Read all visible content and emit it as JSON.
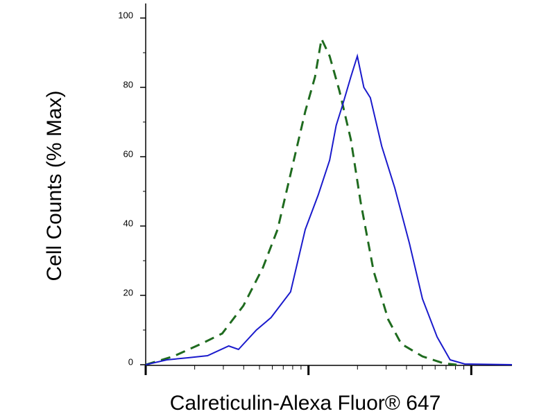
{
  "chart_data": {
    "type": "line",
    "xlabel": "Calreticulin-Alexa Fluor® 647",
    "ylabel": "Cell Counts (% Max)",
    "xscale": "log-decades",
    "xlim": [
      0,
      2.25
    ],
    "xticks": [
      0,
      1,
      2
    ],
    "xminorticks": [
      0.301,
      0.477,
      0.602,
      0.699,
      0.778,
      0.845,
      0.903,
      0.954,
      1.301,
      1.477,
      1.602,
      1.699,
      1.778,
      1.845,
      1.903,
      1.954
    ],
    "ylim": [
      0,
      100
    ],
    "yticks": [
      0,
      20,
      40,
      60,
      80,
      100
    ],
    "yminorticks": [
      10,
      30,
      50,
      70,
      90
    ],
    "series": [
      {
        "color": "#1a1acc",
        "dash": "solid",
        "x": [
          0,
          0.13,
          0.26,
          0.38,
          0.51,
          0.57,
          0.68,
          0.77,
          0.89,
          0.98,
          1.06,
          1.13,
          1.17,
          1.21,
          1.26,
          1.3,
          1.34,
          1.38,
          1.45,
          1.53,
          1.62,
          1.7,
          1.79,
          1.87,
          1.96,
          2.25
        ],
        "values": [
          0,
          1.4,
          2,
          2.6,
          5.4,
          4.4,
          10,
          13.6,
          21,
          39,
          49,
          59,
          69,
          75,
          83,
          89,
          80,
          77,
          63,
          51,
          35,
          19,
          8,
          1.4,
          0.2,
          0
        ]
      },
      {
        "color": "#1f6b1f",
        "dash": "dashed",
        "x": [
          0,
          0.17,
          0.34,
          0.47,
          0.6,
          0.72,
          0.81,
          0.89,
          0.98,
          1.04,
          1.08,
          1.13,
          1.19,
          1.26,
          1.32,
          1.4,
          1.49,
          1.57,
          1.7,
          1.83,
          1.91
        ],
        "values": [
          0,
          2.4,
          6,
          9,
          17,
          28,
          39,
          55,
          73,
          83,
          94,
          89,
          79,
          65,
          47,
          27,
          13,
          6,
          2.4,
          0.4,
          0
        ]
      }
    ]
  }
}
